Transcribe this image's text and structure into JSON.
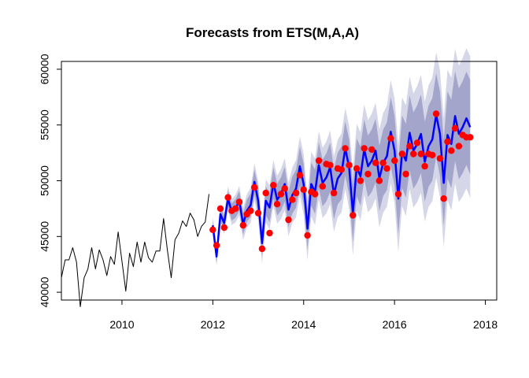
{
  "chart_data": {
    "type": "line",
    "title": "Forecasts from ETS(M,A,A)",
    "xlabel": "",
    "ylabel": "",
    "xlim": [
      2008.667,
      2018.25
    ],
    "ylim": [
      39300,
      60700
    ],
    "x_ticks": [
      2010,
      2012,
      2014,
      2016,
      2018
    ],
    "y_ticks": [
      40000,
      45000,
      50000,
      55000,
      60000
    ],
    "x_tick_labels": [
      "2010",
      "2012",
      "2014",
      "2016",
      "2018"
    ],
    "y_tick_labels": [
      "40000",
      "45000",
      "50000",
      "55000",
      "60000"
    ],
    "grid": false,
    "legend": "none",
    "colors": {
      "history": "#000000",
      "forecast": "#0000ff",
      "band_95": "#d5d6e8",
      "band_80": "#a3a5cb",
      "actual_points": "#ff0000",
      "axis": "#000000"
    },
    "series": [
      {
        "role": "history",
        "x_start": 2008.667,
        "x_step": 0.0833333,
        "values": [
          41300,
          42900,
          42900,
          44000,
          42700,
          38700,
          41300,
          42100,
          44000,
          42100,
          43800,
          42900,
          41500,
          43200,
          42500,
          45400,
          42800,
          40100,
          43500,
          42300,
          44500,
          42700,
          44500,
          43100,
          42700,
          43700,
          43700,
          46600,
          43800,
          41300,
          44700,
          45300,
          46400,
          45900,
          47100,
          46500,
          45000,
          45900,
          46300,
          48800
        ]
      },
      {
        "role": "forecast",
        "x_start": 2012.0,
        "x_step": 0.0833333,
        "values": [
          46000,
          43200,
          47000,
          46200,
          48400,
          47200,
          47500,
          48200,
          46100,
          47300,
          47800,
          49900,
          48200,
          44400,
          48200,
          47600,
          49800,
          48300,
          48800,
          49700,
          47400,
          48700,
          49300,
          51300,
          49700,
          45700,
          49700,
          49000,
          51400,
          49800,
          50300,
          51200,
          48800,
          50200,
          50700,
          52900,
          51200,
          47100,
          51200,
          50400,
          52800,
          51300,
          51800,
          52700,
          50200,
          51600,
          52200,
          54400,
          52700,
          48400,
          52600,
          51800,
          54300,
          52700,
          53300,
          54200,
          51700,
          53100,
          53700,
          55900,
          54200,
          49800,
          54100,
          53300,
          55800,
          54200,
          54800,
          55600,
          54800
        ]
      },
      {
        "role": "actual",
        "x_start": 2012.0,
        "x_step": 0.0833333,
        "values": [
          45600,
          44200,
          47500,
          45800,
          48500,
          47300,
          47500,
          48100,
          46000,
          47000,
          47300,
          49400,
          47100,
          43900,
          48900,
          45300,
          49600,
          47900,
          48800,
          49300,
          46500,
          48300,
          48900,
          50500,
          49200,
          45100,
          49000,
          48800,
          51800,
          49500,
          51500,
          51400,
          48900,
          51100,
          51000,
          52900,
          51400,
          46900,
          51100,
          50000,
          52900,
          50600,
          52800,
          51600,
          50000,
          51600,
          51100,
          53800,
          51800,
          48800,
          52400,
          50600,
          53100,
          52400,
          53400,
          52400,
          51300,
          52400,
          52300,
          56000,
          52000,
          48400,
          53500,
          52700,
          54700,
          53100,
          54100,
          53900,
          53900
        ]
      }
    ]
  }
}
